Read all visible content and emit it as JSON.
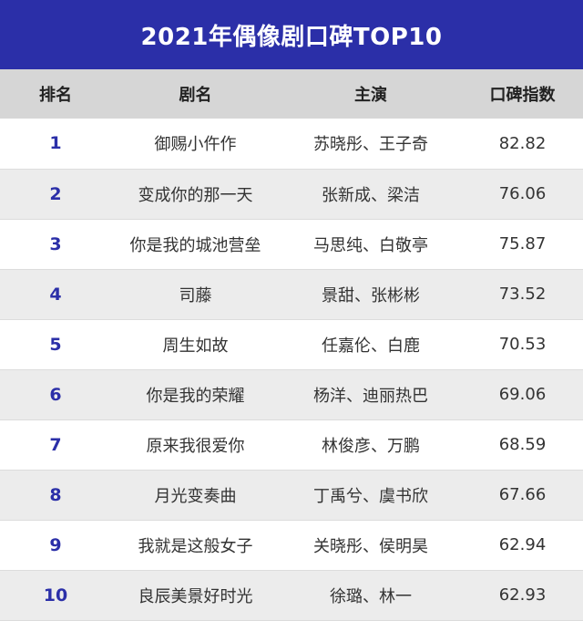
{
  "title": "2021年偶像剧口碑TOP10",
  "accent_color": "#2b2fa8",
  "chart_data": {
    "type": "table",
    "title": "2021年偶像剧口碑TOP10",
    "columns": [
      "排名",
      "剧名",
      "主演",
      "口碑指数"
    ],
    "rows": [
      {
        "rank": "1",
        "name": "御赐小仵作",
        "cast": "苏晓彤、王子奇",
        "score": "82.82"
      },
      {
        "rank": "2",
        "name": "变成你的那一天",
        "cast": "张新成、梁洁",
        "score": "76.06"
      },
      {
        "rank": "3",
        "name": "你是我的城池营垒",
        "cast": "马思纯、白敬亭",
        "score": "75.87"
      },
      {
        "rank": "4",
        "name": "司藤",
        "cast": "景甜、张彬彬",
        "score": "73.52"
      },
      {
        "rank": "5",
        "name": "周生如故",
        "cast": "任嘉伦、白鹿",
        "score": "70.53"
      },
      {
        "rank": "6",
        "name": "你是我的荣耀",
        "cast": "杨洋、迪丽热巴",
        "score": "69.06"
      },
      {
        "rank": "7",
        "name": "原来我很爱你",
        "cast": "林俊彦、万鹏",
        "score": "68.59"
      },
      {
        "rank": "8",
        "name": "月光变奏曲",
        "cast": "丁禹兮、虞书欣",
        "score": "67.66"
      },
      {
        "rank": "9",
        "name": "我就是这般女子",
        "cast": "关晓彤、侯明昊",
        "score": "62.94"
      },
      {
        "rank": "10",
        "name": "良辰美景好时光",
        "cast": "徐璐、林一",
        "score": "62.93"
      }
    ]
  }
}
